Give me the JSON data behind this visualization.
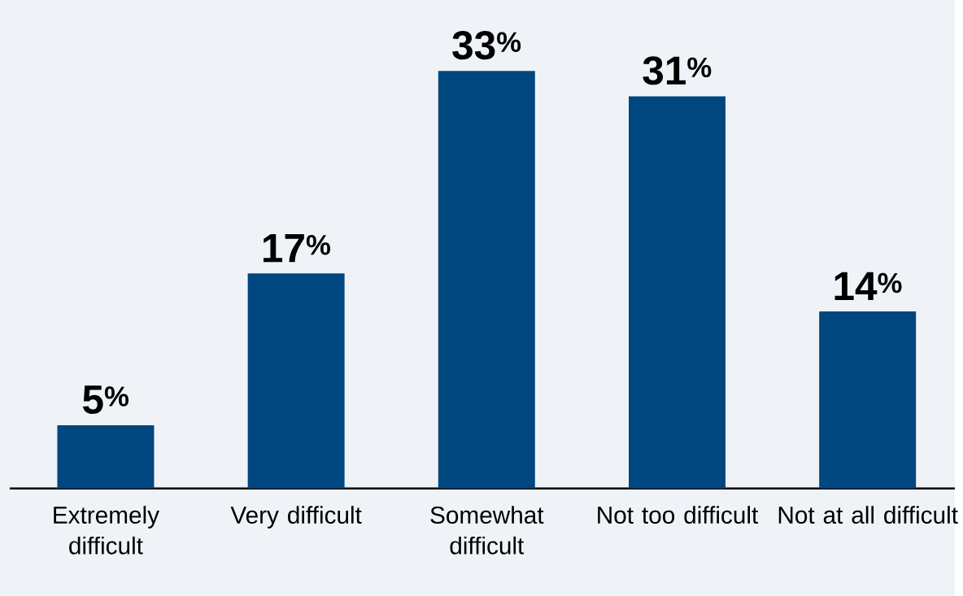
{
  "chart_data": {
    "type": "bar",
    "categories": [
      "Extremely difficult",
      "Very difficult",
      "Somewhat difficult",
      "Not too difficult",
      "Not at all difficult"
    ],
    "values": [
      5,
      17,
      33,
      31,
      14
    ],
    "value_labels": [
      "5$^{%}$",
      "17$^{%}$",
      "33$^{%}$",
      "31$^{%}$",
      "14$^{%}$"
    ],
    "color": "#00467f"
  }
}
